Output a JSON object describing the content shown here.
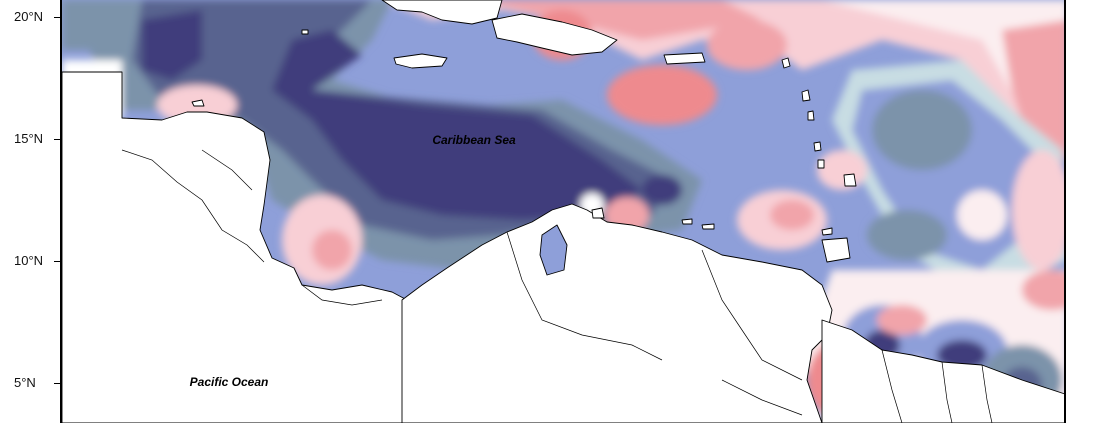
{
  "map": {
    "labels": {
      "sea": "Caribbean Sea",
      "ocean": "Pacific Ocean"
    },
    "latitudes": [
      "20°N",
      "15°N",
      "10°N",
      "5°N"
    ],
    "palette": {
      "deep_blue": "#3f3d7c",
      "slate_blue": "#58638f",
      "grey_blue": "#7b93aa",
      "mid_blue": "#8e9fd9",
      "pale_blue": "#c8dde3",
      "near_white": "#fbeef0",
      "light_pink": "#f8cfd5",
      "pink": "#f1a4aa",
      "coral": "#ee8a8e",
      "land": "#ffffff",
      "coast": "#000000"
    }
  }
}
